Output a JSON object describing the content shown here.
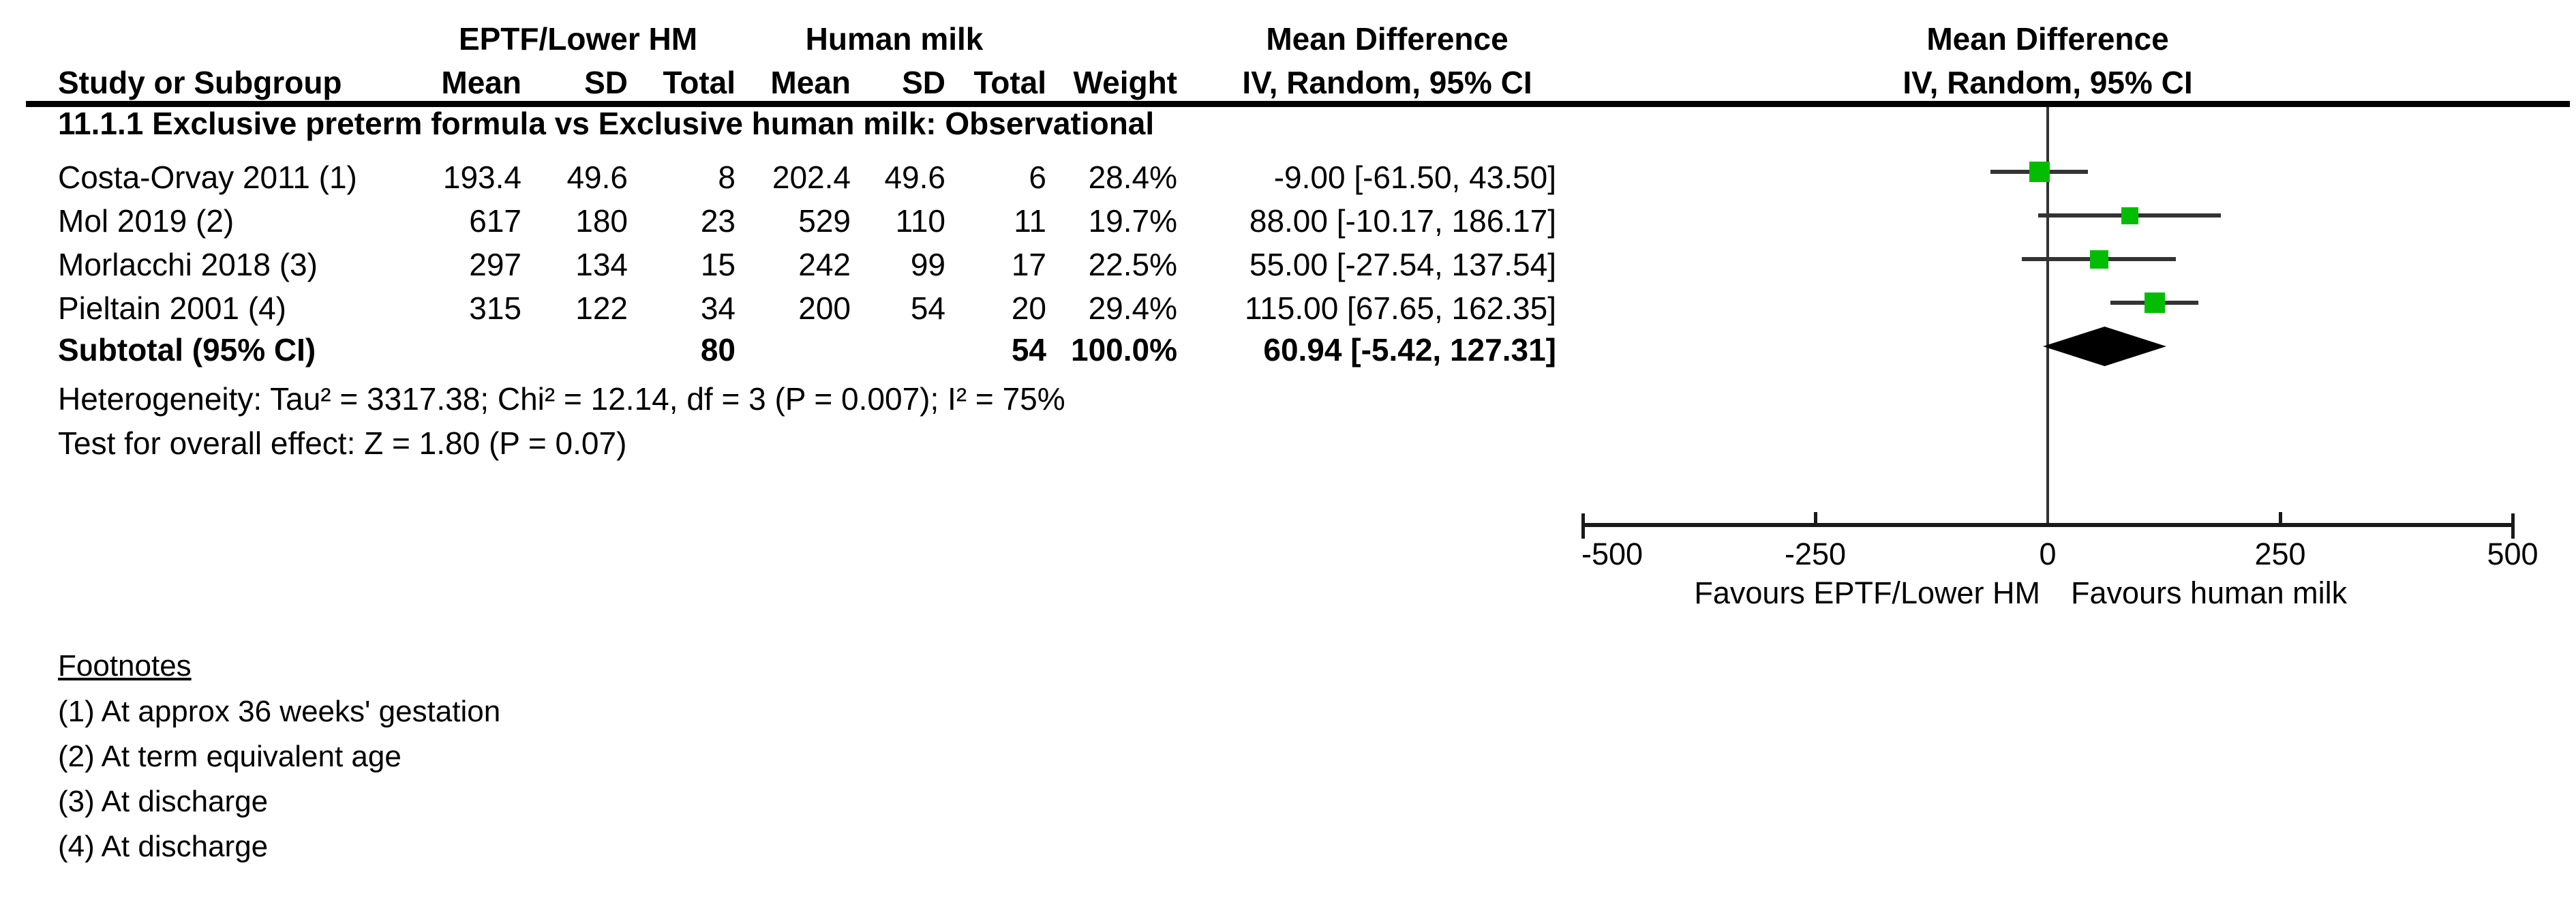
{
  "table": {
    "group_headers": {
      "treatment": "EPTF/Lower HM",
      "control": "Human milk",
      "stat_title": "Mean Difference",
      "plot_title": "Mean Difference"
    },
    "columns": {
      "study": "Study or Subgroup",
      "mean1": "Mean",
      "sd1": "SD",
      "total1": "Total",
      "mean2": "Mean",
      "sd2": "SD",
      "total2": "Total",
      "weight": "Weight",
      "ci": "IV, Random, 95% CI",
      "plot_ci": "IV, Random, 95% CI"
    },
    "subgroup_title": "11.1.1 Exclusive preterm formula vs Exclusive human milk: Observational",
    "rows": [
      {
        "study": "Costa-Orvay 2011 (1)",
        "mean1": "193.4",
        "sd1": "49.6",
        "total1": "8",
        "mean2": "202.4",
        "sd2": "49.6",
        "total2": "6",
        "weight": "28.4%",
        "ci": "-9.00 [-61.50, 43.50]"
      },
      {
        "study": "Mol 2019 (2)",
        "mean1": "617",
        "sd1": "180",
        "total1": "23",
        "mean2": "529",
        "sd2": "110",
        "total2": "11",
        "weight": "19.7%",
        "ci": "88.00 [-10.17, 186.17]"
      },
      {
        "study": "Morlacchi 2018 (3)",
        "mean1": "297",
        "sd1": "134",
        "total1": "15",
        "mean2": "242",
        "sd2": "99",
        "total2": "17",
        "weight": "22.5%",
        "ci": "55.00 [-27.54, 137.54]"
      },
      {
        "study": "Pieltain 2001 (4)",
        "mean1": "315",
        "sd1": "122",
        "total1": "34",
        "mean2": "200",
        "sd2": "54",
        "total2": "20",
        "weight": "29.4%",
        "ci": "115.00 [67.65, 162.35]"
      }
    ],
    "subtotal": {
      "label": "Subtotal (95% CI)",
      "total1": "80",
      "total2": "54",
      "weight": "100.0%",
      "ci": "60.94 [-5.42, 127.31]"
    },
    "heterogeneity": "Heterogeneity: Tau² = 3317.38; Chi² = 12.14, df = 3 (P = 0.007); I² = 75%",
    "overall_effect": "Test for overall effect: Z = 1.80 (P = 0.07)"
  },
  "footnotes": {
    "title": "Footnotes",
    "items": [
      "(1) At approx 36 weeks' gestation",
      "(2) At term equivalent age",
      "(3) At discharge",
      "(4) At discharge"
    ]
  },
  "chart_data": {
    "type": "scatter",
    "subtype": "forest-plot",
    "title": "Mean Difference",
    "subtitle": "IV, Random, 95% CI",
    "x_axis": {
      "min": -500,
      "max": 500,
      "ticks": [
        -500,
        -250,
        0,
        250,
        500
      ],
      "zero_line": 0,
      "label_left": "Favours EPTF/Lower HM",
      "label_right": "Favours human milk"
    },
    "studies": [
      {
        "name": "Costa-Orvay 2011 (1)",
        "md": -9.0,
        "ci_low": -61.5,
        "ci_high": 43.5,
        "weight": 28.4
      },
      {
        "name": "Mol 2019 (2)",
        "md": 88.0,
        "ci_low": -10.17,
        "ci_high": 186.17,
        "weight": 19.7
      },
      {
        "name": "Morlacchi 2018 (3)",
        "md": 55.0,
        "ci_low": -27.54,
        "ci_high": 137.54,
        "weight": 22.5
      },
      {
        "name": "Pieltain 2001 (4)",
        "md": 115.0,
        "ci_low": 67.65,
        "ci_high": 162.35,
        "weight": 29.4
      }
    ],
    "subtotal": {
      "md": 60.94,
      "ci_low": -5.42,
      "ci_high": 127.31
    },
    "totals": {
      "treatment_n": 80,
      "control_n": 54,
      "weight": "100.0%"
    },
    "heterogeneity": {
      "tau2": 3317.38,
      "chi2": 12.14,
      "df": 3,
      "p": 0.007,
      "i2": "75%"
    },
    "overall_effect": {
      "z": 1.8,
      "p": 0.07
    },
    "marker_color": "#03bd03",
    "line_color": "#333333",
    "diamond_color": "#000000"
  }
}
